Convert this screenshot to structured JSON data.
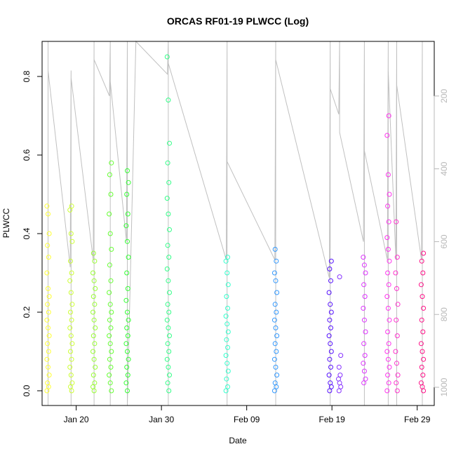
{
  "chart_data": {
    "type": "scatter",
    "title": "ORCAS RF01-19 PLWCC (Log)",
    "xlabel": "Date",
    "ylabel": "PLWCC",
    "xlim": [
      "2016-01-16",
      "2016-03-02"
    ],
    "ylim": [
      0.0,
      0.9
    ],
    "x_ticks": [
      {
        "date": "2016-01-20",
        "label": "Jan 20"
      },
      {
        "date": "2016-01-30",
        "label": "Jan 30"
      },
      {
        "date": "2016-02-09",
        "label": "Feb 09"
      },
      {
        "date": "2016-02-19",
        "label": "Feb 19"
      },
      {
        "date": "2016-02-29",
        "label": "Feb 29"
      }
    ],
    "y_ticks": [
      0.0,
      0.2,
      0.4,
      0.6,
      0.8
    ],
    "y2_axis": {
      "ticks": [
        200,
        400,
        600,
        800,
        1000
      ],
      "reversed": true,
      "range": [
        50,
        1050
      ],
      "color": "#b8b8b8"
    },
    "flights": [
      {
        "date": "2016-01-16.7",
        "color": "#ffff33",
        "values": [
          0.47,
          0.45,
          0.4,
          0.37,
          0.34,
          0.3,
          0.26,
          0.24,
          0.22,
          0.2,
          0.18,
          0.16,
          0.14,
          0.12,
          0.1,
          0.08,
          0.06,
          0.04,
          0.02,
          0.01,
          0.0
        ]
      },
      {
        "date": "2016-01-19.4",
        "color": "#ccff33",
        "values": [
          0.47,
          0.46,
          0.4,
          0.38,
          0.33,
          0.3,
          0.28,
          0.25,
          0.22,
          0.2,
          0.18,
          0.16,
          0.14,
          0.12,
          0.1,
          0.08,
          0.06,
          0.04,
          0.02,
          0.01,
          0.0
        ]
      },
      {
        "date": "2016-01-22.1",
        "color": "#99ff33",
        "values": [
          0.35,
          0.33,
          0.3,
          0.28,
          0.26,
          0.24,
          0.22,
          0.2,
          0.18,
          0.16,
          0.14,
          0.12,
          0.1,
          0.08,
          0.06,
          0.04,
          0.02,
          0.01,
          0.0
        ]
      },
      {
        "date": "2016-01-24.0",
        "color": "#66ff33",
        "values": [
          0.58,
          0.55,
          0.5,
          0.45,
          0.4,
          0.36,
          0.32,
          0.28,
          0.25,
          0.22,
          0.2,
          0.18,
          0.16,
          0.14,
          0.12,
          0.1,
          0.08,
          0.06,
          0.04,
          0.02,
          0.0
        ]
      },
      {
        "date": "2016-01-26.0",
        "color": "#33ff33",
        "values": [
          0.56,
          0.53,
          0.5,
          0.45,
          0.42,
          0.38,
          0.34,
          0.3,
          0.26,
          0.23,
          0.2,
          0.18,
          0.16,
          0.14,
          0.12,
          0.1,
          0.08,
          0.06,
          0.04,
          0.02,
          0.0
        ]
      },
      {
        "date": "2016-01-30.8",
        "color": "#33ff88",
        "values": [
          0.85,
          0.74,
          0.63,
          0.58,
          0.53,
          0.49,
          0.45,
          0.41,
          0.37,
          0.34,
          0.31,
          0.28,
          0.25,
          0.22,
          0.2,
          0.18,
          0.16,
          0.14,
          0.12,
          0.1,
          0.08,
          0.06,
          0.04,
          0.02,
          0.0
        ]
      },
      {
        "date": "2016-02-06.7",
        "color": "#33ffcc",
        "values": [
          0.34,
          0.33,
          0.3,
          0.27,
          0.24,
          0.21,
          0.19,
          0.17,
          0.15,
          0.13,
          0.11,
          0.09,
          0.07,
          0.05,
          0.03,
          0.01,
          0.0
        ]
      },
      {
        "date": "2016-02-12.4",
        "color": "#3399ff",
        "values": [
          0.36,
          0.33,
          0.3,
          0.28,
          0.25,
          0.22,
          0.2,
          0.18,
          0.16,
          0.14,
          0.12,
          0.1,
          0.08,
          0.06,
          0.04,
          0.02,
          0.01,
          0.0
        ]
      },
      {
        "date": "2016-02-18.8",
        "color": "#5511ff",
        "values": [
          0.33,
          0.31,
          0.28,
          0.25,
          0.22,
          0.2,
          0.18,
          0.16,
          0.14,
          0.12,
          0.1,
          0.08,
          0.06,
          0.04,
          0.02,
          0.01,
          0.0
        ]
      },
      {
        "date": "2016-02-19.9",
        "color": "#8833ff",
        "values": [
          0.29,
          0.09,
          0.06,
          0.04,
          0.03,
          0.02,
          0.01,
          0.0
        ]
      },
      {
        "date": "2016-02-22.8",
        "color": "#dd33ff",
        "values": [
          0.34,
          0.32,
          0.3,
          0.27,
          0.24,
          0.21,
          0.18,
          0.15,
          0.12,
          0.09,
          0.07,
          0.05,
          0.03,
          0.02
        ]
      },
      {
        "date": "2016-02-25.6",
        "color": "#ff33ee",
        "values": [
          0.7,
          0.65,
          0.55,
          0.5,
          0.47,
          0.43,
          0.39,
          0.36,
          0.33,
          0.3,
          0.27,
          0.24,
          0.21,
          0.18,
          0.15,
          0.12,
          0.1,
          0.08,
          0.06,
          0.04,
          0.02,
          0.0
        ]
      },
      {
        "date": "2016-02-26.6",
        "color": "#ff33cc",
        "values": [
          0.43,
          0.34,
          0.3,
          0.26,
          0.22,
          0.18,
          0.14,
          0.1,
          0.07,
          0.04,
          0.02,
          0.0
        ]
      },
      {
        "date": "2016-02-29.6",
        "color": "#ff1188",
        "values": [
          0.35,
          0.33,
          0.3,
          0.27,
          0.24,
          0.21,
          0.18,
          0.15,
          0.12,
          0.1,
          0.08,
          0.06,
          0.04,
          0.02,
          0.01,
          0.0
        ]
      }
    ],
    "profile_line": {
      "color": "#c0c0c0",
      "points": [
        [
          "2016-01-16.7",
          50
        ],
        [
          "2016-01-16.7",
          1050
        ],
        [
          "2016-01-16.7",
          130
        ],
        [
          "2016-01-19.3",
          670
        ],
        [
          "2016-01-19.4",
          130
        ],
        [
          "2016-01-19.4",
          1050
        ],
        [
          "2016-01-19.4",
          150
        ],
        [
          "2016-01-22.0",
          650
        ],
        [
          "2016-01-22.1",
          50
        ],
        [
          "2016-01-22.1",
          1050
        ],
        [
          "2016-01-22.1",
          100
        ],
        [
          "2016-01-23.9",
          200
        ],
        [
          "2016-01-24.0",
          50
        ],
        [
          "2016-01-24.0",
          1050
        ],
        [
          "2016-01-24.0",
          160
        ],
        [
          "2016-01-25.9",
          600
        ],
        [
          "2016-01-26.0",
          50
        ],
        [
          "2016-01-26.0",
          1050
        ],
        [
          "2016-01-27.0",
          50
        ],
        [
          "2016-01-30.7",
          140
        ],
        [
          "2016-01-30.8",
          50
        ],
        [
          "2016-01-30.8",
          1050
        ],
        [
          "2016-01-30.8",
          110
        ],
        [
          "2016-02-06.6",
          650
        ],
        [
          "2016-02-06.7",
          50
        ],
        [
          "2016-02-06.7",
          1050
        ],
        [
          "2016-02-06.7",
          380
        ],
        [
          "2016-02-12.3",
          650
        ],
        [
          "2016-02-12.4",
          50
        ],
        [
          "2016-02-12.4",
          1050
        ],
        [
          "2016-02-12.4",
          100
        ],
        [
          "2016-02-18.7",
          700
        ],
        [
          "2016-02-18.8",
          50
        ],
        [
          "2016-02-18.8",
          1050
        ],
        [
          "2016-02-18.8",
          180
        ],
        [
          "2016-02-19.8",
          250
        ],
        [
          "2016-02-19.9",
          50
        ],
        [
          "2016-02-19.9",
          300
        ],
        [
          "2016-02-22.7",
          600
        ],
        [
          "2016-02-22.8",
          50
        ],
        [
          "2016-02-22.8",
          1050
        ],
        [
          "2016-02-22.8",
          350
        ],
        [
          "2016-02-25.5",
          650
        ],
        [
          "2016-02-25.6",
          50
        ],
        [
          "2016-02-25.6",
          1050
        ],
        [
          "2016-02-25.6",
          130
        ],
        [
          "2016-02-26.5",
          650
        ],
        [
          "2016-02-26.6",
          50
        ],
        [
          "2016-02-26.6",
          1050
        ],
        [
          "2016-02-26.6",
          170
        ],
        [
          "2016-02-29.5",
          650
        ],
        [
          "2016-02-29.6",
          50
        ],
        [
          "2016-02-29.6",
          1050
        ]
      ]
    },
    "grid": false,
    "legend": "none"
  }
}
